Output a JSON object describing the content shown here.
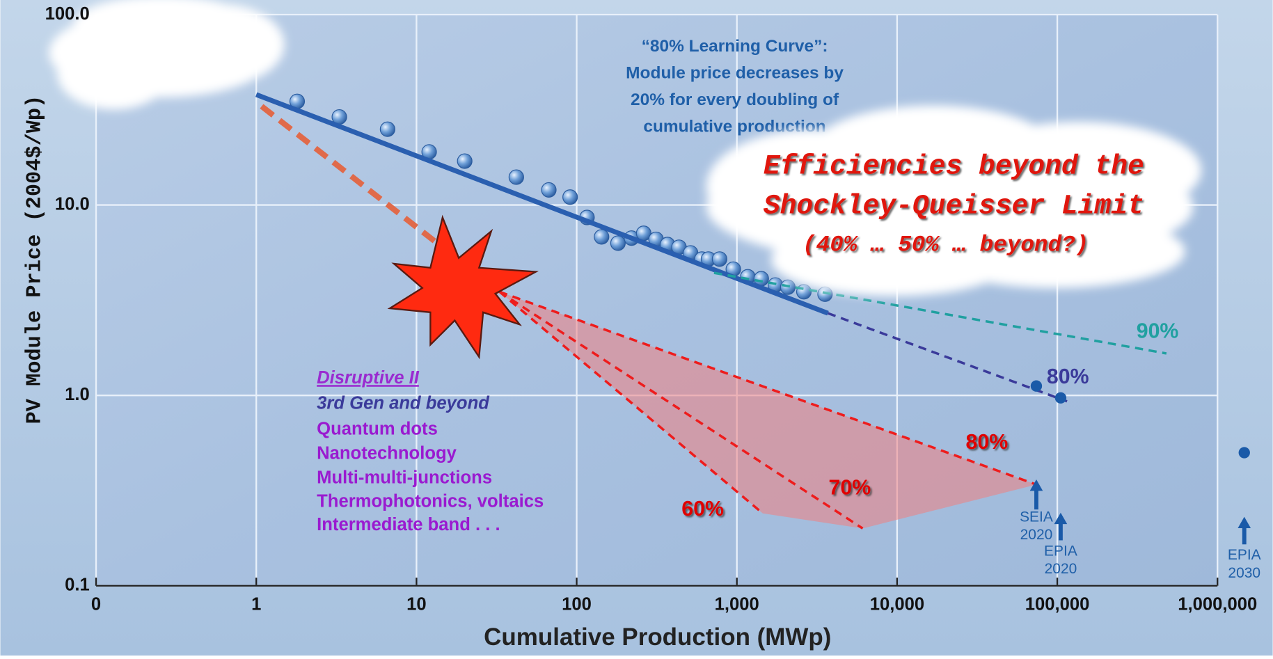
{
  "chart_data": {
    "type": "scatter",
    "xlabel": "Cumulative Production (MWp)",
    "ylabel": "PV Module Price (2004$/Wp)",
    "log_x": true,
    "log_y": true,
    "grid": true,
    "xlim": [
      0.1,
      1000000
    ],
    "ylim": [
      0.1,
      100
    ],
    "xticks": [
      {
        "value": 0.1,
        "label": "0"
      },
      1,
      10,
      100,
      {
        "value": 1000,
        "label": "1,000"
      },
      {
        "value": 10000,
        "label": "10,000"
      },
      {
        "value": 100000,
        "label": "100,000"
      },
      {
        "value": 1000000,
        "label": "1,000,000"
      }
    ],
    "yticks": [
      {
        "value": 0.1,
        "label": "0.1"
      },
      {
        "value": 1,
        "label": "1.0"
      },
      {
        "value": 10,
        "label": "10.0"
      },
      {
        "value": 100,
        "label": "100.0"
      }
    ],
    "series": [
      {
        "kind": "points",
        "color": "#5b93d3",
        "x": [
          1.8,
          3.3,
          6.6,
          12,
          20,
          42,
          67,
          91,
          116,
          143,
          181,
          220,
          262,
          313,
          369,
          435,
          514,
          605,
          665,
          780,
          950,
          1170,
          1420,
          1740,
          2080,
          2620,
          3550
        ],
        "values": [
          35,
          29,
          25,
          19,
          17,
          14,
          12,
          11,
          8.6,
          6.8,
          6.3,
          6.7,
          7.1,
          6.6,
          6.2,
          6.0,
          5.6,
          5.2,
          5.2,
          5.2,
          4.6,
          4.2,
          4.1,
          3.8,
          3.7,
          3.5,
          3.4
        ]
      },
      {
        "kind": "line",
        "style": "solid",
        "color": "#2a5fb0",
        "x": [
          1,
          3700
        ],
        "values": [
          38,
          2.7
        ]
      },
      {
        "name": "80%",
        "kind": "line",
        "style": "dashed",
        "color": "#3a3a9a",
        "x": [
          3700,
          115000
        ],
        "values": [
          2.7,
          0.93
        ]
      },
      {
        "name": "90%",
        "kind": "line",
        "style": "dashed",
        "color": "#20a0a0",
        "x": [
          720,
          480000
        ],
        "values": [
          4.4,
          1.66
        ]
      },
      {
        "kind": "line",
        "style": "thick-dashed",
        "color": "#e06a4a",
        "x": [
          1.08,
          33
        ],
        "values": [
          33,
          3.5
        ]
      },
      {
        "name": "60%",
        "kind": "line",
        "style": "dashed",
        "color": "#ee1c1c",
        "x": [
          33,
          1450
        ],
        "values": [
          3.5,
          0.24
        ]
      },
      {
        "name": "70%",
        "kind": "line",
        "style": "dashed",
        "color": "#ee1c1c",
        "x": [
          33,
          6100
        ],
        "values": [
          3.5,
          0.2
        ]
      },
      {
        "name": "80%",
        "kind": "line",
        "style": "dashed",
        "color": "#ee1c1c",
        "x": [
          33,
          74000
        ],
        "values": [
          3.5,
          0.34
        ]
      },
      {
        "kind": "points",
        "color": "#1a5aa8",
        "x": [
          74000,
          105000,
          1470000
        ],
        "values": [
          1.12,
          0.97,
          0.5
        ]
      }
    ],
    "targets": [
      {
        "lines": [
          "SEIA",
          "2020"
        ],
        "x": 74000
      },
      {
        "lines": [
          "EPIA",
          "2020"
        ],
        "x": 105000
      },
      {
        "lines": [
          "EPIA",
          "2030"
        ],
        "x": 1470000
      }
    ],
    "annotations": {
      "learning_curve": [
        "“80% Learning Curve”:",
        "Module price decreases by",
        "20% for every doubling of",
        "cumulative production"
      ],
      "cloud": [
        "Efficiencies beyond the",
        "Shockley-Queisser Limit",
        "(40% … 50% … beyond?)"
      ],
      "disruptive": {
        "title": "Disruptive II",
        "subtitle": "3rd Gen and beyond",
        "items": [
          "Quantum dots",
          "Nanotechnology",
          "Multi-multi-junctions",
          "Thermophotonics, voltaics",
          "Intermediate band . . ."
        ]
      }
    }
  }
}
